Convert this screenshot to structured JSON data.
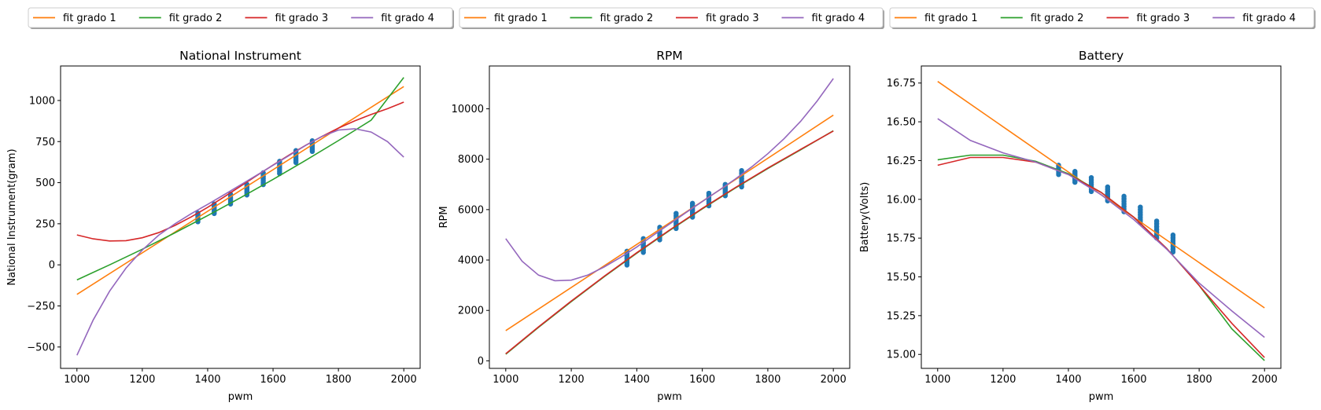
{
  "chart_data": [
    {
      "type": "line",
      "title": "National Instrument",
      "xlabel": "pwm",
      "ylabel": "National Instrument(gram)",
      "xlim": [
        950,
        2050
      ],
      "ylim": [
        -630,
        1210
      ],
      "xticks": [
        1000,
        1200,
        1400,
        1600,
        1800,
        2000
      ],
      "xtick_labels": [
        "1000",
        "1200",
        "1400",
        "1600",
        "1800",
        "2000"
      ],
      "yticks": [
        -500,
        -250,
        0,
        250,
        500,
        750,
        1000
      ],
      "ytick_labels": [
        "−500",
        "−250",
        "0",
        "250",
        "500",
        "750",
        "1000"
      ],
      "grid": false,
      "legend": {
        "placement": "above",
        "entries": [
          "fit grado 1",
          "fit grado 2",
          "fit grado 3",
          "fit grado 4"
        ]
      },
      "series": [
        {
          "name": "fit grado 1",
          "color": "#ff7f0e",
          "x": [
            1000,
            2000
          ],
          "values": [
            -180,
            1085
          ]
        },
        {
          "name": "fit grado 2",
          "color": "#2ca02c",
          "x": [
            1000,
            1100,
            1200,
            1300,
            1400,
            1500,
            1600,
            1700,
            1800,
            1900,
            2000
          ],
          "values": [
            -92,
            0,
            95,
            195,
            300,
            408,
            520,
            636,
            756,
            880,
            1140
          ]
        },
        {
          "name": "fit grado 3",
          "color": "#d62728",
          "x": [
            1000,
            1050,
            1100,
            1150,
            1200,
            1250,
            1300,
            1350,
            1400,
            1450,
            1500,
            1550,
            1600,
            1650,
            1700,
            1750,
            1800,
            1850,
            1900,
            1950,
            2000
          ],
          "values": [
            182,
            158,
            145,
            147,
            165,
            196,
            240,
            292,
            350,
            413,
            478,
            543,
            607,
            669,
            728,
            782,
            832,
            876,
            915,
            950,
            990
          ]
        },
        {
          "name": "fit grado 4",
          "color": "#9467bd",
          "x": [
            1000,
            1050,
            1100,
            1150,
            1200,
            1250,
            1300,
            1350,
            1400,
            1450,
            1500,
            1550,
            1600,
            1650,
            1700,
            1750,
            1800,
            1850,
            1900,
            1950,
            2000
          ],
          "values": [
            -550,
            -335,
            -160,
            -20,
            90,
            180,
            250,
            312,
            368,
            426,
            486,
            545,
            606,
            666,
            727,
            782,
            820,
            828,
            808,
            750,
            655
          ]
        }
      ],
      "scatter": {
        "color": "#1f77b4",
        "x": [
          1370,
          1420,
          1470,
          1520,
          1570,
          1620,
          1670,
          1720
        ],
        "y_min": [
          262,
          312,
          370,
          425,
          488,
          555,
          622,
          690
        ],
        "y_max": [
          315,
          370,
          430,
          490,
          560,
          630,
          695,
          755
        ]
      }
    },
    {
      "type": "line",
      "title": "RPM",
      "xlabel": "pwm",
      "ylabel": "RPM",
      "xlim": [
        950,
        2050
      ],
      "ylim": [
        -300,
        11700
      ],
      "xticks": [
        1000,
        1200,
        1400,
        1600,
        1800,
        2000
      ],
      "xtick_labels": [
        "1000",
        "1200",
        "1400",
        "1600",
        "1800",
        "2000"
      ],
      "yticks": [
        0,
        2000,
        4000,
        6000,
        8000,
        10000
      ],
      "ytick_labels": [
        "0",
        "2000",
        "4000",
        "6000",
        "8000",
        "10000"
      ],
      "grid": false,
      "legend": {
        "placement": "above",
        "entries": [
          "fit grado 1",
          "fit grado 2",
          "fit grado 3",
          "fit grado 4"
        ]
      },
      "series": [
        {
          "name": "fit grado 1",
          "color": "#ff7f0e",
          "x": [
            1000,
            2000
          ],
          "values": [
            1200,
            9750
          ]
        },
        {
          "name": "fit grado 2",
          "color": "#2ca02c",
          "x": [
            1000,
            1100,
            1200,
            1300,
            1400,
            1500,
            1600,
            1700,
            1800,
            1900,
            2000
          ],
          "values": [
            260,
            1330,
            2350,
            3330,
            4270,
            5170,
            6030,
            6850,
            7630,
            8370,
            9130
          ]
        },
        {
          "name": "fit grado 3",
          "color": "#d62728",
          "x": [
            1000,
            1100,
            1200,
            1300,
            1400,
            1500,
            1600,
            1700,
            1800,
            1900,
            2000
          ],
          "values": [
            280,
            1350,
            2370,
            3350,
            4290,
            5190,
            6050,
            6870,
            7650,
            8390,
            9120
          ]
        },
        {
          "name": "fit grado 4",
          "color": "#9467bd",
          "x": [
            1000,
            1050,
            1100,
            1150,
            1200,
            1250,
            1300,
            1350,
            1400,
            1450,
            1500,
            1550,
            1600,
            1650,
            1700,
            1750,
            1800,
            1850,
            1900,
            1950,
            2000
          ],
          "values": [
            4850,
            3950,
            3400,
            3180,
            3200,
            3400,
            3720,
            4100,
            4520,
            4980,
            5430,
            5880,
            6320,
            6760,
            7210,
            7690,
            8220,
            8820,
            9500,
            10300,
            11200
          ]
        }
      ],
      "scatter": {
        "color": "#1f77b4",
        "x": [
          1370,
          1420,
          1470,
          1520,
          1570,
          1620,
          1670,
          1720
        ],
        "y_min": [
          3800,
          4300,
          4800,
          5250,
          5700,
          6150,
          6550,
          6900
        ],
        "y_max": [
          4350,
          4850,
          5300,
          5850,
          6250,
          6650,
          7000,
          7550
        ]
      }
    },
    {
      "type": "line",
      "title": "Battery",
      "xlabel": "pwm",
      "ylabel": "Battery(Volts)",
      "xlim": [
        950,
        2050
      ],
      "ylim": [
        14.91,
        16.86
      ],
      "xticks": [
        1000,
        1200,
        1400,
        1600,
        1800,
        2000
      ],
      "xtick_labels": [
        "1000",
        "1200",
        "1400",
        "1600",
        "1800",
        "2000"
      ],
      "yticks": [
        15.0,
        15.25,
        15.5,
        15.75,
        16.0,
        16.25,
        16.5,
        16.75
      ],
      "ytick_labels": [
        "15.00",
        "15.25",
        "15.50",
        "15.75",
        "16.00",
        "16.25",
        "16.50",
        "16.75"
      ],
      "grid": false,
      "legend": {
        "placement": "above",
        "entries": [
          "fit grado 1",
          "fit grado 2",
          "fit grado 3",
          "fit grado 4"
        ]
      },
      "series": [
        {
          "name": "fit grado 1",
          "color": "#ff7f0e",
          "x": [
            1000,
            2000
          ],
          "values": [
            16.76,
            15.3
          ]
        },
        {
          "name": "fit grado 2",
          "color": "#2ca02c",
          "x": [
            1000,
            1100,
            1200,
            1300,
            1400,
            1500,
            1600,
            1700,
            1800,
            1900,
            2000
          ],
          "values": [
            16.255,
            16.285,
            16.285,
            16.245,
            16.165,
            16.045,
            15.885,
            15.685,
            15.445,
            15.165,
            14.96
          ]
        },
        {
          "name": "fit grado 3",
          "color": "#d62728",
          "x": [
            1000,
            1100,
            1200,
            1300,
            1400,
            1500,
            1600,
            1700,
            1800,
            1900,
            2000
          ],
          "values": [
            16.22,
            16.27,
            16.27,
            16.24,
            16.16,
            16.045,
            15.885,
            15.685,
            15.445,
            15.2,
            14.98
          ]
        },
        {
          "name": "fit grado 4",
          "color": "#9467bd",
          "x": [
            1000,
            1100,
            1200,
            1300,
            1400,
            1500,
            1600,
            1700,
            1800,
            1900,
            2000
          ],
          "values": [
            16.52,
            16.38,
            16.3,
            16.24,
            16.16,
            16.03,
            15.87,
            15.68,
            15.46,
            15.28,
            15.11
          ]
        }
      ],
      "scatter": {
        "color": "#1f77b4",
        "x": [
          1370,
          1420,
          1470,
          1520,
          1570,
          1620,
          1670,
          1720
        ],
        "y_min": [
          16.16,
          16.11,
          16.05,
          15.99,
          15.92,
          15.85,
          15.75,
          15.66
        ],
        "y_max": [
          16.22,
          16.18,
          16.14,
          16.08,
          16.02,
          15.95,
          15.86,
          15.77
        ]
      }
    }
  ]
}
